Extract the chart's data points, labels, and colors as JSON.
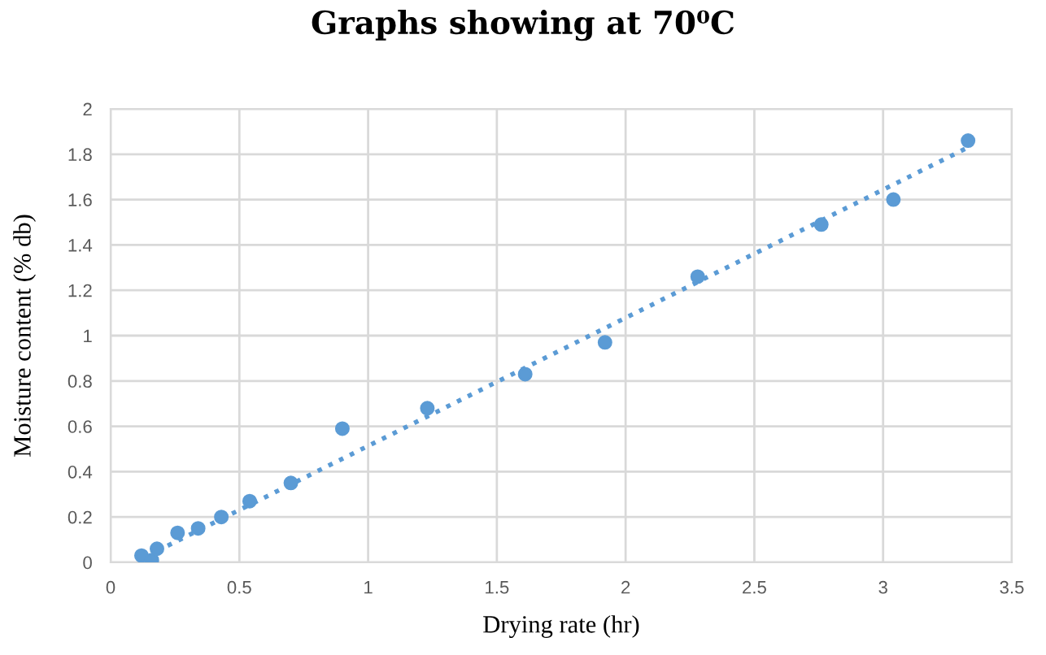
{
  "chart_data": {
    "type": "scatter",
    "title": "Graphs showing at 70⁰C",
    "xlabel": "Drying rate (hr)",
    "ylabel": "Moisture content (% db)",
    "series": [
      {
        "color": "#5b9bd5",
        "marker": "circle",
        "x": [
          0.12,
          0.16,
          0.18,
          0.26,
          0.34,
          0.43,
          0.54,
          0.7,
          0.9,
          1.23,
          1.61,
          1.92,
          2.28,
          2.76,
          3.04,
          3.33
        ],
        "values": [
          0.03,
          0.01,
          0.06,
          0.13,
          0.15,
          0.2,
          0.27,
          0.35,
          0.59,
          0.68,
          0.83,
          0.97,
          1.26,
          1.49,
          1.6,
          1.86
        ]
      },
      {
        "type": "line",
        "color": "#5b9bd5",
        "line_style": "dotted",
        "x": [
          0.18,
          3.33
        ],
        "values": [
          0.05,
          1.83
        ]
      }
    ],
    "xlim": [
      0,
      3.5
    ],
    "ylim": [
      0,
      2
    ],
    "xticks": [
      0,
      0.5,
      1,
      1.5,
      2,
      2.5,
      3,
      3.5
    ],
    "yticks": [
      0,
      0.2,
      0.4,
      0.6,
      0.8,
      1,
      1.2,
      1.4,
      1.6,
      1.8,
      2
    ],
    "grid": true
  }
}
